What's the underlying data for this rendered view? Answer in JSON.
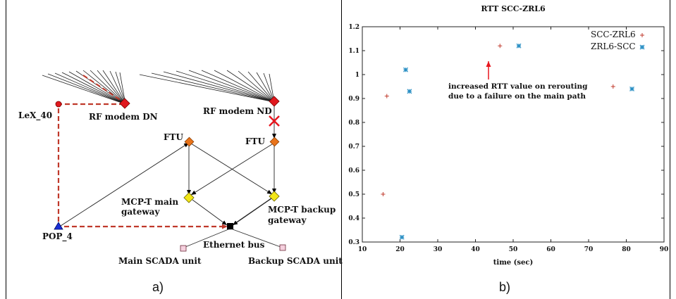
{
  "panels": {
    "a_label": "a)",
    "b_label": "b)"
  },
  "diagram": {
    "nodes": {
      "lex40": "LeX_40",
      "rf_dn": "RF modem DN",
      "rf_nd": "RF modem ND",
      "ftu_left": "FTU",
      "ftu_right": "FTU",
      "mcp_main_1": "MCP-T main",
      "mcp_main_2": "gateway",
      "mcp_backup_1": "MCP-T backup",
      "mcp_backup_2": "gateway",
      "pop4": "POP_4",
      "ethernet": "Ethernet bus",
      "scada_main": "Main SCADA unit",
      "scada_backup": "Backup SCADA unit"
    },
    "colors": {
      "route": "#c0392b",
      "rf_modem": "#e0181e",
      "ftu": "#e8731a",
      "gateway": "#f2e619",
      "pop": "#1a2fd6",
      "bus": "#000000",
      "scada": "#f5d0de",
      "failure": "#e8171f"
    }
  },
  "chart_data": {
    "type": "scatter",
    "title": "RTT SCC-ZRL6",
    "xlabel": "time (sec)",
    "ylabel": "",
    "xlim": [
      10,
      90
    ],
    "ylim": [
      0.3,
      1.2
    ],
    "xticks": [
      10,
      20,
      30,
      40,
      50,
      60,
      70,
      80,
      90
    ],
    "yticks": [
      0.3,
      0.4,
      0.5,
      0.6,
      0.7,
      0.8,
      0.9,
      1,
      1.1,
      1.2
    ],
    "ytick_labels": [
      "0.3",
      "0.4",
      "0.5",
      "0.6",
      "0.7",
      "0.8",
      "0.9",
      "1",
      "1.1",
      "1.2"
    ],
    "legend_position": "top-right",
    "series": [
      {
        "name": "SCC-ZRL6",
        "marker": "+",
        "color": "#c0392b",
        "points": [
          [
            15.5,
            0.5
          ],
          [
            16.5,
            0.91
          ],
          [
            46.5,
            1.12
          ],
          [
            76.5,
            0.95
          ]
        ]
      },
      {
        "name": "ZRL6-SCC",
        "marker": "*",
        "color": "#2a8fc4",
        "points": [
          [
            20.5,
            0.32
          ],
          [
            21.5,
            1.02
          ],
          [
            22.5,
            0.93
          ],
          [
            51.5,
            1.12
          ],
          [
            81.5,
            0.94
          ]
        ]
      }
    ],
    "annotation": {
      "line1": "increased RTT value on rerouting",
      "line2": "due to a failure on the main path",
      "arrow_color": "#e8171f"
    }
  }
}
